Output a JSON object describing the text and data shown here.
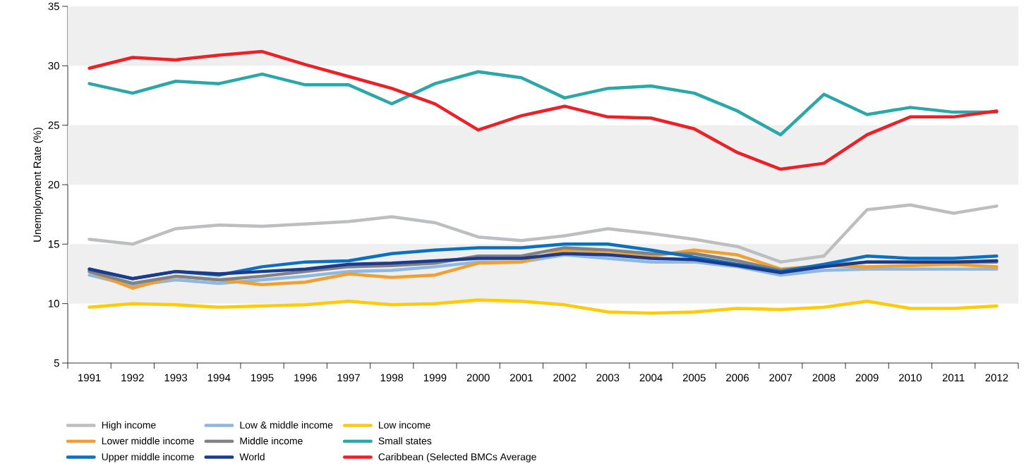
{
  "chart_data": {
    "type": "line",
    "ylabel": "Unemployment Rate (%)",
    "categories": [
      "1991",
      "1992",
      "1993",
      "1994",
      "1995",
      "1996",
      "1997",
      "1998",
      "1999",
      "2000",
      "2001",
      "2002",
      "2003",
      "2004",
      "2005",
      "2006",
      "2007",
      "2008",
      "2009",
      "2010",
      "2011",
      "2012"
    ],
    "ylim": [
      5,
      35
    ],
    "yticks": [
      5,
      10,
      15,
      20,
      25,
      30,
      35
    ],
    "legend": "bottom",
    "bands": [
      {
        "axis": "y",
        "from": 10,
        "to": 15,
        "color": "#efefef"
      },
      {
        "axis": "y",
        "from": 20,
        "to": 25,
        "color": "#efefef"
      },
      {
        "axis": "y",
        "from": 30,
        "to": 35,
        "color": "#efefef"
      }
    ],
    "series": [
      {
        "name": "High income",
        "color": "#bdbec0",
        "values": [
          15.4,
          15.0,
          16.3,
          16.6,
          16.5,
          16.7,
          16.9,
          17.3,
          16.8,
          15.6,
          15.3,
          15.7,
          16.3,
          15.9,
          15.4,
          14.8,
          13.5,
          14.0,
          17.9,
          18.3,
          17.6,
          18.2
        ]
      },
      {
        "name": "Low & middle income",
        "color": "#8db8e4",
        "values": [
          12.4,
          11.5,
          12.0,
          11.7,
          12.0,
          12.3,
          12.7,
          12.8,
          13.1,
          13.5,
          13.5,
          14.1,
          13.8,
          13.5,
          13.5,
          13.1,
          12.4,
          12.8,
          12.9,
          12.9,
          12.9,
          12.9
        ]
      },
      {
        "name": "Low income",
        "color": "#fecb08",
        "values": [
          9.7,
          10.0,
          9.9,
          9.7,
          9.8,
          9.9,
          10.2,
          9.9,
          10.0,
          10.3,
          10.2,
          9.9,
          9.3,
          9.2,
          9.3,
          9.6,
          9.5,
          9.7,
          10.2,
          9.6,
          9.6,
          9.8
        ]
      },
      {
        "name": "Lower middle income",
        "color": "#f0a030",
        "values": [
          12.7,
          11.3,
          12.3,
          12.0,
          11.6,
          11.8,
          12.5,
          12.2,
          12.4,
          13.4,
          13.5,
          14.5,
          14.2,
          14.0,
          14.5,
          14.1,
          12.9,
          13.2,
          13.1,
          13.2,
          13.3,
          13.1
        ]
      },
      {
        "name": "Middle income",
        "color": "#808285",
        "values": [
          12.7,
          11.7,
          12.3,
          12.0,
          12.3,
          12.7,
          13.1,
          13.2,
          13.4,
          14.0,
          14.0,
          14.7,
          14.5,
          14.2,
          14.2,
          13.6,
          12.8,
          13.2,
          13.5,
          13.5,
          13.5,
          13.5
        ]
      },
      {
        "name": "Small states",
        "color": "#2aa7a8",
        "values": [
          28.5,
          27.7,
          28.7,
          28.5,
          29.3,
          28.4,
          28.4,
          26.8,
          28.5,
          29.5,
          29.0,
          27.3,
          28.1,
          28.3,
          27.7,
          26.2,
          24.2,
          27.6,
          25.9,
          26.5,
          26.1,
          26.1
        ]
      },
      {
        "name": "Upper middle income",
        "color": "#0a70bf",
        "values": [
          12.9,
          12.1,
          12.7,
          12.4,
          13.1,
          13.5,
          13.6,
          14.2,
          14.5,
          14.7,
          14.7,
          15.0,
          15.0,
          14.5,
          13.9,
          13.3,
          12.7,
          13.3,
          14.0,
          13.8,
          13.8,
          14.0
        ]
      },
      {
        "name": "World",
        "color": "#1c3b8c",
        "values": [
          12.9,
          12.1,
          12.7,
          12.5,
          12.7,
          12.9,
          13.3,
          13.4,
          13.6,
          13.8,
          13.8,
          14.2,
          14.1,
          13.8,
          13.7,
          13.2,
          12.6,
          13.1,
          13.5,
          13.5,
          13.5,
          13.6
        ]
      },
      {
        "name": "Caribbean (Selected BMCs Average",
        "color": "#ed2027",
        "values": [
          29.8,
          30.7,
          30.5,
          30.9,
          31.2,
          30.1,
          29.1,
          28.1,
          26.8,
          24.6,
          25.8,
          26.6,
          25.7,
          25.6,
          24.7,
          22.7,
          21.3,
          21.8,
          24.2,
          25.7,
          25.7,
          26.2
        ]
      }
    ]
  }
}
